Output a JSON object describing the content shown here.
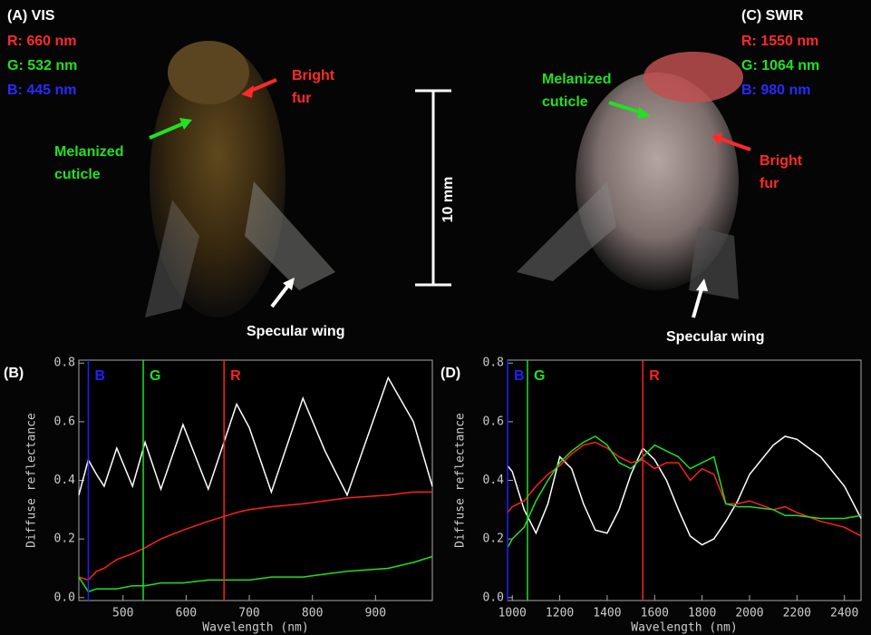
{
  "images": [
    {
      "title": "(A) VIS",
      "channels": [
        {
          "text": "R: 660 nm",
          "color": "#ff2a2a"
        },
        {
          "text": "G: 532 nm",
          "color": "#22e022"
        },
        {
          "text": "B: 445 nm",
          "color": "#2a2aff"
        }
      ],
      "annotations": [
        {
          "lines": [
            "Bright",
            "fur"
          ],
          "color": "#ff2a2a"
        },
        {
          "lines": [
            "Melanized",
            "cuticle"
          ],
          "color": "#22e022"
        },
        {
          "lines": [
            "Specular wing"
          ],
          "color": "#ffffff"
        }
      ]
    },
    {
      "title": "(C) SWIR",
      "channels": [
        {
          "text": "R: 1550 nm",
          "color": "#ff2a2a"
        },
        {
          "text": "G: 1064 nm",
          "color": "#22e022"
        },
        {
          "text": "B: 980 nm",
          "color": "#2a2aff"
        }
      ],
      "annotations": [
        {
          "lines": [
            "Bright",
            "fur"
          ],
          "color": "#ff2a2a"
        },
        {
          "lines": [
            "Melanized",
            "cuticle"
          ],
          "color": "#22e022"
        },
        {
          "lines": [
            "Specular wing"
          ],
          "color": "#ffffff"
        }
      ]
    }
  ],
  "scale_bar": "10 mm",
  "chart_data": [
    {
      "type": "line",
      "title": "(B)",
      "xlabel": "Wavelength (nm)",
      "ylabel": "Diffuse reflectance",
      "xlim": [
        430,
        990
      ],
      "xticks": [
        500,
        600,
        700,
        800,
        900
      ],
      "ylim": [
        -0.01,
        0.81
      ],
      "yticks": [
        {
          "value": 0,
          "label": "0.0"
        },
        0.2,
        0.4,
        0.6,
        0.8
      ],
      "markers": [
        {
          "label": "B",
          "x": 445,
          "color": "#2020ff"
        },
        {
          "label": "G",
          "x": 532,
          "color": "#20e020"
        },
        {
          "label": "R",
          "x": 660,
          "color": "#ff2020"
        }
      ],
      "x": [
        430,
        445,
        458,
        470,
        490,
        515,
        535,
        560,
        595,
        635,
        680,
        700,
        735,
        785,
        820,
        855,
        920,
        960,
        990
      ],
      "series": [
        {
          "color": "#ffffff",
          "values": [
            0.35,
            0.47,
            0.42,
            0.38,
            0.51,
            0.38,
            0.53,
            0.37,
            0.59,
            0.37,
            0.66,
            0.58,
            0.36,
            0.68,
            0.5,
            0.35,
            0.75,
            0.6,
            0.38
          ]
        },
        {
          "color": "#ff2020",
          "values": [
            0.07,
            0.06,
            0.09,
            0.1,
            0.13,
            0.15,
            0.17,
            0.2,
            0.23,
            0.26,
            0.29,
            0.3,
            0.31,
            0.32,
            0.33,
            0.34,
            0.35,
            0.36,
            0.36
          ]
        },
        {
          "color": "#20e020",
          "values": [
            0.07,
            0.02,
            0.03,
            0.03,
            0.03,
            0.04,
            0.04,
            0.05,
            0.05,
            0.06,
            0.06,
            0.06,
            0.07,
            0.07,
            0.08,
            0.09,
            0.1,
            0.12,
            0.14
          ]
        }
      ]
    },
    {
      "type": "line",
      "title": "(D)",
      "xlabel": "Wavelength (nm)",
      "ylabel": "Diffuse reflectance",
      "xlim": [
        980,
        2470
      ],
      "xticks": [
        1000,
        1200,
        1400,
        1600,
        1800,
        2000,
        2200,
        2400
      ],
      "ylim": [
        -0.01,
        0.81
      ],
      "yticks": [
        {
          "value": 0,
          "label": "0.0"
        },
        0.2,
        0.4,
        0.6,
        0.8
      ],
      "markers": [
        {
          "label": "B",
          "x": 980,
          "color": "#2020ff"
        },
        {
          "label": "G",
          "x": 1064,
          "color": "#20e020"
        },
        {
          "label": "R",
          "x": 1550,
          "color": "#ff2020"
        }
      ],
      "x": [
        980,
        1000,
        1050,
        1100,
        1150,
        1200,
        1250,
        1300,
        1350,
        1400,
        1450,
        1500,
        1550,
        1600,
        1650,
        1700,
        1750,
        1800,
        1850,
        1900,
        1950,
        2000,
        2100,
        2150,
        2200,
        2300,
        2400,
        2470
      ],
      "series": [
        {
          "color": "#ffffff",
          "values": [
            0.45,
            0.43,
            0.3,
            0.22,
            0.32,
            0.48,
            0.44,
            0.32,
            0.23,
            0.22,
            0.3,
            0.42,
            0.51,
            0.47,
            0.4,
            0.3,
            0.21,
            0.18,
            0.2,
            0.26,
            0.33,
            0.42,
            0.52,
            0.55,
            0.54,
            0.48,
            0.38,
            0.27
          ]
        },
        {
          "color": "#ff2020",
          "values": [
            0.29,
            0.31,
            0.33,
            0.38,
            0.42,
            0.45,
            0.49,
            0.52,
            0.53,
            0.51,
            0.48,
            0.46,
            0.47,
            0.44,
            0.46,
            0.46,
            0.4,
            0.44,
            0.42,
            0.32,
            0.32,
            0.33,
            0.3,
            0.31,
            0.29,
            0.26,
            0.24,
            0.21
          ]
        },
        {
          "color": "#20e020",
          "values": [
            0.17,
            0.2,
            0.24,
            0.33,
            0.4,
            0.46,
            0.5,
            0.53,
            0.55,
            0.52,
            0.46,
            0.44,
            0.48,
            0.52,
            0.5,
            0.48,
            0.44,
            0.46,
            0.48,
            0.32,
            0.31,
            0.31,
            0.3,
            0.28,
            0.28,
            0.27,
            0.27,
            0.28
          ]
        }
      ]
    }
  ]
}
